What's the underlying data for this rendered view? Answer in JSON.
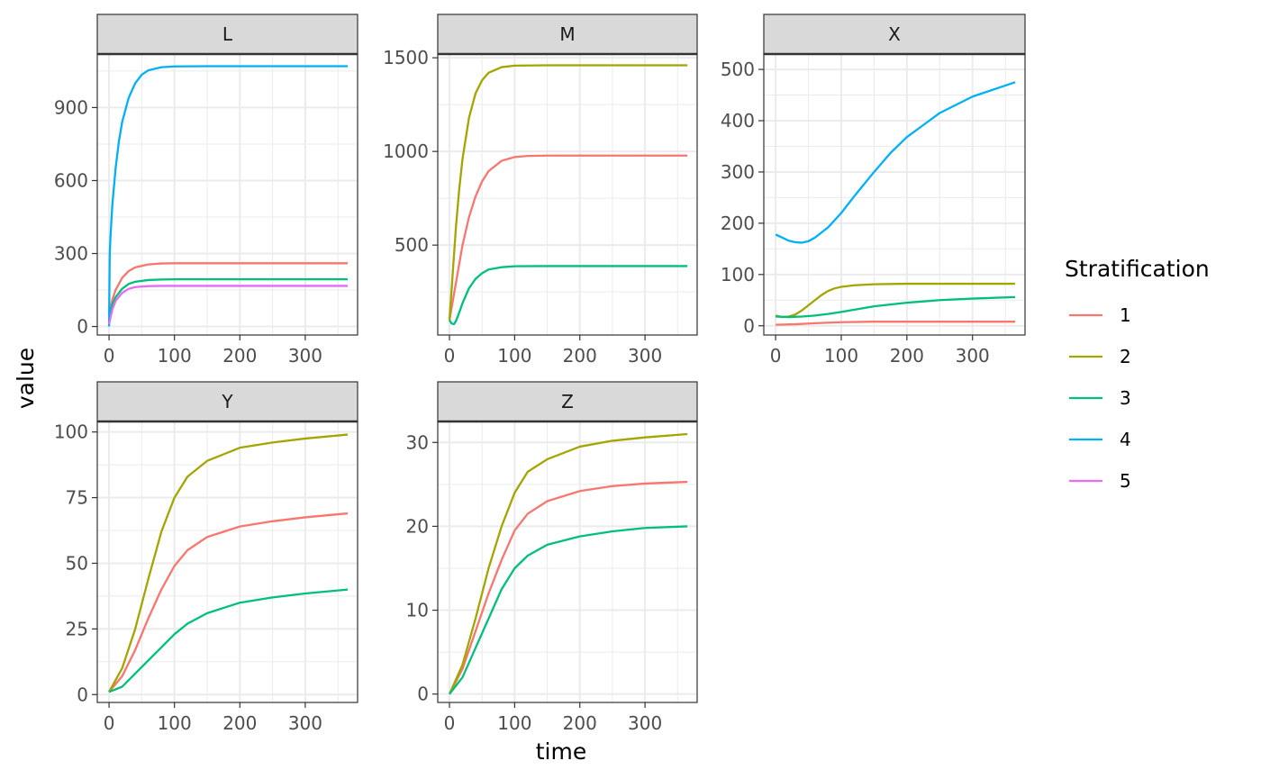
{
  "chart_data": {
    "type": "line",
    "xlabel": "time",
    "ylabel": "value",
    "legend": {
      "title": "Stratification",
      "position": "right"
    },
    "series_styles": [
      {
        "name": "1",
        "color": "#F8766D"
      },
      {
        "name": "2",
        "color": "#A3A500"
      },
      {
        "name": "3",
        "color": "#00BF7D"
      },
      {
        "name": "4",
        "color": "#00B0F6"
      },
      {
        "name": "5",
        "color": "#E76BF3"
      }
    ],
    "theme": {
      "grid": true,
      "panel_border": true,
      "strip_fill": "#D9D9D9"
    },
    "facets": [
      {
        "title": "L",
        "xlim": [
          -18,
          380
        ],
        "ylim": [
          -35,
          1120
        ],
        "xticks": [
          0,
          100,
          200,
          300
        ],
        "yticks": [
          0,
          300,
          600,
          900
        ],
        "series": [
          {
            "name": "1",
            "x": [
              0,
              5,
              10,
              20,
              30,
              40,
              60,
              80,
              100,
              150,
              200,
              250,
              300,
              365
            ],
            "values": [
              50,
              110,
              150,
              200,
              228,
              243,
              255,
              259,
              260,
              260,
              260,
              260,
              260,
              260
            ]
          },
          {
            "name": "3",
            "x": [
              0,
              5,
              10,
              20,
              30,
              40,
              60,
              80,
              100,
              150,
              200,
              250,
              300,
              365
            ],
            "values": [
              40,
              90,
              120,
              155,
              175,
              184,
              191,
              193,
              194,
              194,
              194,
              194,
              194,
              194
            ]
          },
          {
            "name": "4",
            "x": [
              0,
              1,
              2,
              5,
              10,
              15,
              20,
              30,
              40,
              50,
              60,
              80,
              100,
              150,
              200,
              250,
              300,
              365
            ],
            "values": [
              0,
              290,
              360,
              500,
              650,
              760,
              840,
              940,
              1000,
              1035,
              1053,
              1066,
              1069,
              1070,
              1070,
              1070,
              1070,
              1070
            ]
          },
          {
            "name": "5",
            "x": [
              0,
              5,
              10,
              20,
              30,
              40,
              60,
              80,
              100,
              150,
              200,
              250,
              300,
              365
            ],
            "values": [
              10,
              70,
              105,
              138,
              155,
              162,
              166,
              167,
              167,
              167,
              167,
              167,
              167,
              167
            ]
          }
        ]
      },
      {
        "title": "M",
        "xlim": [
          -18,
          380
        ],
        "ylim": [
          20,
          1520
        ],
        "xticks": [
          0,
          100,
          200,
          300
        ],
        "yticks": [
          500,
          1000,
          1500
        ],
        "series": [
          {
            "name": "1",
            "x": [
              0,
              10,
              20,
              30,
              40,
              50,
              60,
              80,
              100,
              120,
              150,
              200,
              250,
              300,
              365
            ],
            "values": [
              100,
              300,
              500,
              650,
              760,
              840,
              895,
              950,
              970,
              976,
              978,
              978,
              978,
              978,
              978
            ]
          },
          {
            "name": "2",
            "x": [
              0,
              5,
              10,
              15,
              20,
              30,
              40,
              50,
              60,
              80,
              100,
              150,
              200,
              250,
              300,
              365
            ],
            "values": [
              100,
              350,
              600,
              800,
              960,
              1180,
              1310,
              1380,
              1420,
              1450,
              1458,
              1460,
              1460,
              1460,
              1460,
              1460
            ]
          },
          {
            "name": "3",
            "x": [
              0,
              3,
              7,
              10,
              15,
              20,
              30,
              40,
              50,
              60,
              80,
              100,
              150,
              200,
              250,
              300,
              365
            ],
            "values": [
              100,
              82,
              78,
              95,
              140,
              190,
              270,
              320,
              350,
              370,
              382,
              387,
              388,
              388,
              388,
              388,
              388
            ]
          }
        ]
      },
      {
        "title": "X",
        "xlim": [
          -18,
          380
        ],
        "ylim": [
          -18,
          530
        ],
        "xticks": [
          0,
          100,
          200,
          300
        ],
        "yticks": [
          0,
          100,
          200,
          300,
          400,
          500
        ],
        "series": [
          {
            "name": "1",
            "x": [
              0,
              30,
              60,
              100,
              150,
              200,
              250,
              300,
              365
            ],
            "values": [
              2,
              3,
              5,
              7,
              8,
              8,
              8,
              8,
              8
            ]
          },
          {
            "name": "2",
            "x": [
              0,
              10,
              20,
              30,
              40,
              50,
              60,
              70,
              80,
              90,
              100,
              120,
              150,
              200,
              250,
              300,
              365
            ],
            "values": [
              20,
              17,
              18,
              22,
              30,
              40,
              50,
              60,
              68,
              73,
              76,
              79,
              81,
              82,
              82,
              82,
              82
            ]
          },
          {
            "name": "3",
            "x": [
              0,
              20,
              40,
              60,
              80,
              100,
              150,
              200,
              250,
              300,
              365
            ],
            "values": [
              18,
              17,
              18,
              20,
              23,
              27,
              38,
              45,
              50,
              53,
              56
            ]
          },
          {
            "name": "4",
            "x": [
              0,
              10,
              20,
              30,
              40,
              50,
              60,
              80,
              100,
              120,
              150,
              175,
              200,
              250,
              300,
              365
            ],
            "values": [
              178,
              172,
              166,
              163,
              162,
              165,
              172,
              192,
              220,
              253,
              300,
              337,
              368,
              415,
              447,
              475
            ]
          }
        ]
      },
      {
        "title": "Y",
        "xlim": [
          -18,
          380
        ],
        "ylim": [
          -3,
          104
        ],
        "xticks": [
          0,
          100,
          200,
          300
        ],
        "yticks": [
          0,
          25,
          50,
          75,
          100
        ],
        "series": [
          {
            "name": "1",
            "x": [
              0,
              20,
              40,
              60,
              80,
              100,
              120,
              150,
              200,
              250,
              300,
              365
            ],
            "values": [
              1,
              7,
              17,
              29,
              40,
              49,
              55,
              60,
              64,
              66,
              67.5,
              69
            ]
          },
          {
            "name": "2",
            "x": [
              0,
              20,
              40,
              60,
              80,
              100,
              120,
              150,
              200,
              250,
              300,
              365
            ],
            "values": [
              1,
              10,
              25,
              44,
              62,
              75,
              83,
              89,
              94,
              96,
              97.5,
              99
            ]
          },
          {
            "name": "3",
            "x": [
              0,
              20,
              40,
              60,
              80,
              100,
              120,
              150,
              200,
              250,
              300,
              365
            ],
            "values": [
              1,
              3,
              8,
              13,
              18,
              23,
              27,
              31,
              35,
              37,
              38.5,
              40
            ]
          }
        ]
      },
      {
        "title": "Z",
        "xlim": [
          -18,
          380
        ],
        "ylim": [
          -1,
          32.5
        ],
        "xticks": [
          0,
          100,
          200,
          300
        ],
        "yticks": [
          0,
          10,
          20,
          30
        ],
        "series": [
          {
            "name": "1",
            "x": [
              0,
              20,
              40,
              60,
              80,
              100,
              120,
              150,
              200,
              250,
              300,
              365
            ],
            "values": [
              0,
              3,
              7.5,
              12,
              16,
              19.5,
              21.5,
              23,
              24.2,
              24.8,
              25.1,
              25.3
            ]
          },
          {
            "name": "2",
            "x": [
              0,
              20,
              40,
              60,
              80,
              100,
              120,
              150,
              200,
              250,
              300,
              365
            ],
            "values": [
              0,
              3.5,
              9,
              15,
              20,
              24,
              26.5,
              28,
              29.5,
              30.2,
              30.6,
              31
            ]
          },
          {
            "name": "3",
            "x": [
              0,
              20,
              40,
              60,
              80,
              100,
              120,
              150,
              200,
              250,
              300,
              365
            ],
            "values": [
              0,
              2,
              5.5,
              9,
              12.5,
              15,
              16.5,
              17.8,
              18.8,
              19.4,
              19.8,
              20
            ]
          }
        ]
      }
    ]
  }
}
